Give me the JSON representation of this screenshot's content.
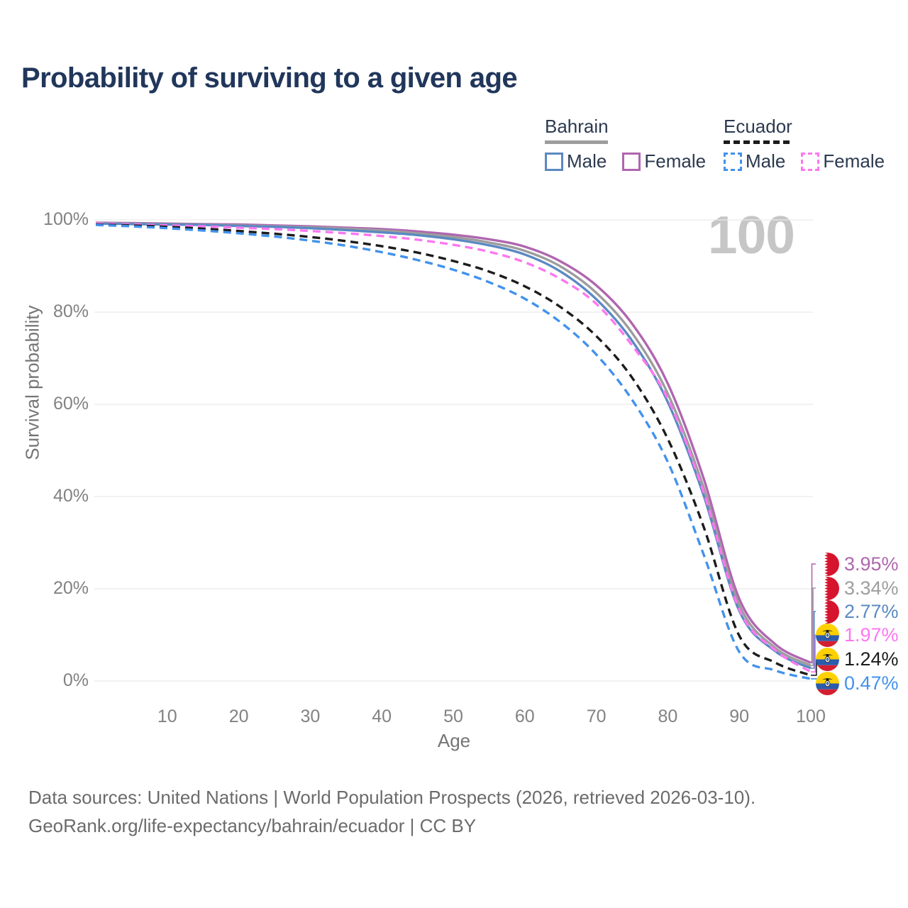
{
  "header": {
    "title": "Probability of surviving to a given age"
  },
  "legend": {
    "groups": [
      {
        "country": "Bahrain",
        "line_style": "solid",
        "underline_color": "#9d9d9d",
        "items": [
          {
            "label": "Male",
            "color": "#5b89c2",
            "dashed": false
          },
          {
            "label": "Female",
            "color": "#b066af",
            "dashed": false
          }
        ]
      },
      {
        "country": "Ecuador",
        "line_style": "dashed",
        "underline_color": "#1c1c1c",
        "items": [
          {
            "label": "Male",
            "color": "#4292ec",
            "dashed": true
          },
          {
            "label": "Female",
            "color": "#fc77f0",
            "dashed": true
          }
        ]
      }
    ]
  },
  "chart_data": {
    "type": "line",
    "title": "Probability of surviving to a given age",
    "xlabel": "Age",
    "ylabel": "Survival probability",
    "xlim": [
      0,
      100
    ],
    "ylim": [
      0,
      100
    ],
    "grid": "horizontal",
    "watermark": "100",
    "x_ticks": [
      {
        "label": "10",
        "value": 10
      },
      {
        "label": "20",
        "value": 20
      },
      {
        "label": "30",
        "value": 30
      },
      {
        "label": "40",
        "value": 40
      },
      {
        "label": "50",
        "value": 50
      },
      {
        "label": "60",
        "value": 60
      },
      {
        "label": "70",
        "value": 70
      },
      {
        "label": "80",
        "value": 80
      },
      {
        "label": "90",
        "value": 90
      },
      {
        "label": "100",
        "value": 100
      }
    ],
    "y_ticks": [
      {
        "label": "0%",
        "value": 0
      },
      {
        "label": "20%",
        "value": 20
      },
      {
        "label": "40%",
        "value": 40
      },
      {
        "label": "60%",
        "value": 60
      },
      {
        "label": "80%",
        "value": 80
      },
      {
        "label": "100%",
        "value": 100
      }
    ],
    "x": [
      0,
      5,
      10,
      15,
      20,
      25,
      30,
      35,
      40,
      45,
      50,
      55,
      60,
      65,
      70,
      75,
      80,
      85,
      90,
      95,
      100
    ],
    "series": [
      {
        "name": "Bahrain Female",
        "country": "Bahrain",
        "sex": "Female",
        "color": "#b066af",
        "dashed": false,
        "flag": "bahrain",
        "end_label": "3.95%",
        "values": [
          99.4,
          99.3,
          99.2,
          99.1,
          99.0,
          98.8,
          98.6,
          98.3,
          98.0,
          97.5,
          96.8,
          95.8,
          94.2,
          91.0,
          85.8,
          77.5,
          64.5,
          44.0,
          17.8,
          8.0,
          3.95
        ]
      },
      {
        "name": "Bahrain Both sexes",
        "country": "Bahrain",
        "sex": "Both",
        "color": "#9d9d9d",
        "dashed": false,
        "flag": "bahrain",
        "end_label": "3.34%",
        "values": [
          99.3,
          99.2,
          99.1,
          99.0,
          98.8,
          98.6,
          98.4,
          98.1,
          97.7,
          97.1,
          96.3,
          95.1,
          93.3,
          89.9,
          84.2,
          75.5,
          62.3,
          42.0,
          16.5,
          7.2,
          3.34
        ]
      },
      {
        "name": "Bahrain Male",
        "country": "Bahrain",
        "sex": "Male",
        "color": "#5b89c2",
        "dashed": false,
        "flag": "bahrain",
        "end_label": "2.77%",
        "values": [
          99.2,
          99.1,
          99.0,
          98.9,
          98.7,
          98.5,
          98.2,
          97.8,
          97.3,
          96.7,
          95.8,
          94.5,
          92.5,
          88.8,
          82.8,
          73.8,
          60.5,
          40.3,
          15.2,
          6.5,
          2.77
        ]
      },
      {
        "name": "Ecuador Female",
        "country": "Ecuador",
        "sex": "Female",
        "color": "#fc77f0",
        "dashed": true,
        "flag": "ecuador",
        "end_label": "1.97%",
        "values": [
          99.2,
          99.0,
          98.8,
          98.6,
          98.3,
          98.0,
          97.6,
          97.1,
          96.5,
          95.7,
          94.6,
          93.1,
          90.8,
          87.2,
          81.8,
          72.8,
          61.2,
          41.0,
          15.5,
          6.7,
          1.97
        ]
      },
      {
        "name": "Ecuador Both sexes",
        "country": "Ecuador",
        "sex": "Both",
        "color": "#1c1c1c",
        "dashed": true,
        "flag": "ecuador",
        "end_label": "1.24%",
        "values": [
          99.0,
          98.8,
          98.5,
          98.1,
          97.6,
          97.0,
          96.3,
          95.4,
          94.3,
          92.9,
          91.1,
          88.8,
          85.6,
          81.1,
          74.8,
          65.8,
          52.5,
          33.5,
          9.8,
          4.0,
          1.24
        ]
      },
      {
        "name": "Ecuador Male",
        "country": "Ecuador",
        "sex": "Male",
        "color": "#4292ec",
        "dashed": true,
        "flag": "ecuador",
        "end_label": "0.47%",
        "values": [
          98.9,
          98.6,
          98.2,
          97.7,
          97.1,
          96.4,
          95.5,
          94.4,
          93.0,
          91.3,
          89.2,
          86.5,
          82.9,
          77.8,
          70.8,
          61.0,
          47.5,
          27.5,
          6.3,
          2.3,
          0.47
        ]
      }
    ]
  },
  "footer": {
    "line1": "Data sources: United Nations | World Population Prospects (2026, retrieved 2026-03-10).",
    "line2": "GeoRank.org/life-expectancy/bahrain/ecuador | CC BY"
  }
}
